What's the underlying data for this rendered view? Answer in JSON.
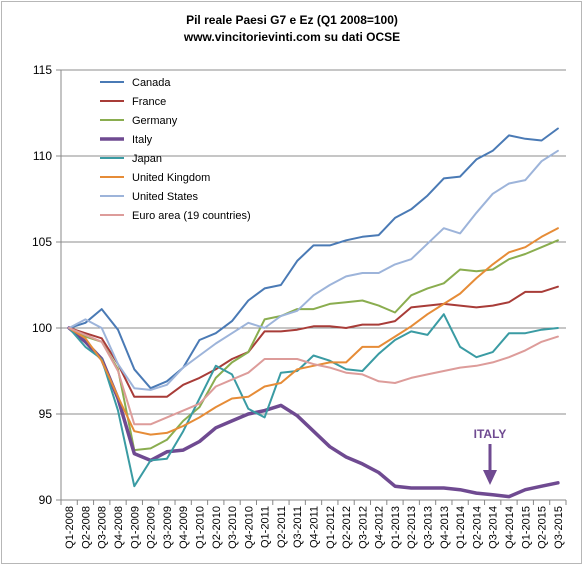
{
  "chart_data": {
    "type": "line",
    "title_line1": "Pil reale Paesi G7 e Ez (Q1 2008=100)",
    "title_line2": "www.vincitorievinti.com su dati OCSE",
    "xlabel": "",
    "ylabel": "",
    "ylim": [
      90,
      115
    ],
    "yticks": [
      "90",
      "95",
      "100",
      "105",
      "110",
      "115"
    ],
    "grid": "horizontal",
    "legend_position": "top-left",
    "categories": [
      "Q1-2008",
      "Q2-2008",
      "Q3-2008",
      "Q4-2008",
      "Q1-2009",
      "Q2-2009",
      "Q3-2009",
      "Q4-2009",
      "Q1-2010",
      "Q2-2010",
      "Q3-2010",
      "Q4-2010",
      "Q1-2011",
      "Q2-2011",
      "Q3-2011",
      "Q4-2011",
      "Q1-2012",
      "Q2-2012",
      "Q3-2012",
      "Q4-2012",
      "Q1-2013",
      "Q2-2013",
      "Q3-2013",
      "Q4-2013",
      "Q1-2014",
      "Q2-2014",
      "Q3-2014",
      "Q4-2014",
      "Q1-2015",
      "Q2-2015",
      "Q3-2015"
    ],
    "series": [
      {
        "name": "Canada",
        "color": "#4a7ab5",
        "width": 2,
        "values": [
          100,
          100.3,
          101.1,
          99.9,
          97.6,
          96.5,
          96.9,
          97.7,
          99.3,
          99.7,
          100.4,
          101.6,
          102.3,
          102.5,
          103.9,
          104.8,
          104.8,
          105.1,
          105.3,
          105.4,
          106.4,
          106.9,
          107.7,
          108.7,
          108.8,
          109.8,
          110.3,
          111.2,
          111.0,
          110.9,
          111.6
        ]
      },
      {
        "name": "France",
        "color": "#a83c38",
        "width": 2,
        "values": [
          100,
          99.7,
          99.4,
          97.9,
          96.0,
          96.0,
          96.0,
          96.7,
          97.1,
          97.6,
          98.2,
          98.6,
          99.8,
          99.8,
          99.9,
          100.1,
          100.1,
          100.0,
          100.2,
          100.2,
          100.4,
          101.2,
          101.3,
          101.4,
          101.3,
          101.2,
          101.3,
          101.5,
          102.1,
          102.1,
          102.4
        ]
      },
      {
        "name": "Germany",
        "color": "#8aad4f",
        "width": 2,
        "values": [
          100,
          99.5,
          99.2,
          97.6,
          92.9,
          93.0,
          93.5,
          94.6,
          95.4,
          97.1,
          98.0,
          98.6,
          100.5,
          100.7,
          101.1,
          101.1,
          101.4,
          101.5,
          101.6,
          101.3,
          100.9,
          101.9,
          102.3,
          102.6,
          103.4,
          103.3,
          103.4,
          104.0,
          104.3,
          104.7,
          105.1
        ]
      },
      {
        "name": "Italy",
        "color": "#6f4a91",
        "width": 3.5,
        "values": [
          100,
          99.2,
          98.2,
          95.9,
          92.7,
          92.3,
          92.8,
          92.9,
          93.4,
          94.2,
          94.6,
          95.0,
          95.2,
          95.5,
          94.9,
          94.0,
          93.1,
          92.5,
          92.1,
          91.6,
          90.8,
          90.7,
          90.7,
          90.7,
          90.6,
          90.4,
          90.3,
          90.2,
          90.6,
          90.8,
          91.0
        ]
      },
      {
        "name": "Japan",
        "color": "#3a9ba3",
        "width": 2,
        "values": [
          100,
          98.9,
          98.2,
          95.2,
          90.8,
          92.3,
          92.4,
          94.0,
          95.9,
          97.8,
          97.3,
          95.3,
          94.8,
          97.4,
          97.5,
          98.4,
          98.1,
          97.6,
          97.5,
          98.5,
          99.3,
          99.8,
          99.6,
          100.8,
          98.9,
          98.3,
          98.6,
          99.7,
          99.7,
          99.9,
          100.0
        ]
      },
      {
        "name": "United Kingdom",
        "color": "#e68c37",
        "width": 2,
        "values": [
          100,
          99.4,
          98.1,
          96.0,
          94.0,
          93.8,
          93.9,
          94.3,
          94.8,
          95.4,
          95.9,
          96.0,
          96.6,
          96.8,
          97.6,
          97.8,
          98.0,
          98.0,
          98.9,
          98.9,
          99.5,
          100.1,
          100.8,
          101.4,
          102.0,
          102.9,
          103.7,
          104.4,
          104.7,
          105.3,
          105.8
        ]
      },
      {
        "name": "United States",
        "color": "#9db4da",
        "width": 2,
        "values": [
          100,
          100.5,
          100.0,
          97.9,
          96.5,
          96.4,
          96.7,
          97.7,
          98.4,
          99.1,
          99.7,
          100.3,
          100.0,
          100.7,
          101.0,
          101.9,
          102.5,
          103.0,
          103.2,
          103.2,
          103.7,
          104.0,
          104.9,
          105.8,
          105.5,
          106.7,
          107.8,
          108.4,
          108.6,
          109.7,
          110.3
        ]
      },
      {
        "name": "Euro area (19 countries)",
        "color": "#dd9c9a",
        "width": 2,
        "values": [
          100,
          99.6,
          99.2,
          97.5,
          94.4,
          94.4,
          94.8,
          95.2,
          95.6,
          96.6,
          97.0,
          97.4,
          98.2,
          98.2,
          98.2,
          97.9,
          97.7,
          97.4,
          97.3,
          96.9,
          96.8,
          97.1,
          97.3,
          97.5,
          97.7,
          97.8,
          98.0,
          98.3,
          98.7,
          99.2,
          99.5
        ]
      }
    ],
    "annotation": {
      "text": "ITALY",
      "color": "#6f4a91"
    }
  }
}
